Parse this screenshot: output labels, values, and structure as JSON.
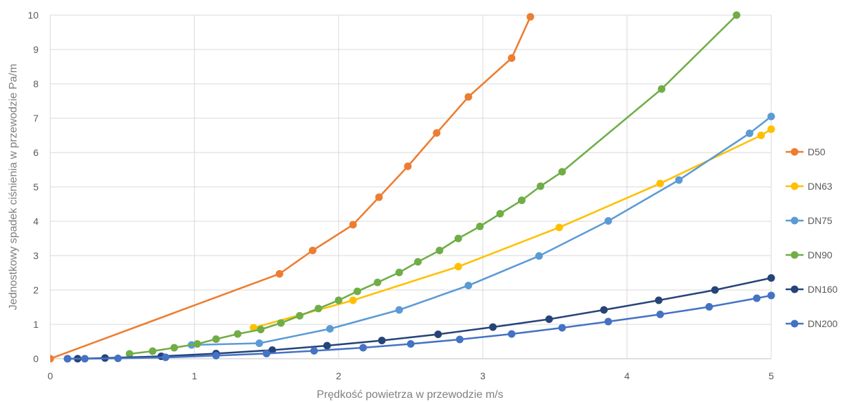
{
  "chart_data": {
    "type": "line",
    "title": "",
    "xlabel": "Prędkość powietrza w przewodzie m/s",
    "ylabel": "Jednostkowy spadek ciśnienia w przewodzie Pa/m",
    "xlim": [
      0,
      5
    ],
    "ylim": [
      0,
      10
    ],
    "xticks": [
      "0",
      "1",
      "2",
      "3",
      "4",
      "5"
    ],
    "yticks": [
      "0",
      "1",
      "2",
      "3",
      "4",
      "5",
      "6",
      "7",
      "8",
      "9",
      "10"
    ],
    "grid": true,
    "legend_position": "right",
    "series": [
      {
        "name": "D50",
        "color": "#ED7D31",
        "points": [
          [
            0,
            0
          ],
          [
            1.59,
            2.47
          ],
          [
            1.82,
            3.15
          ],
          [
            2.1,
            3.9
          ],
          [
            2.28,
            4.7
          ],
          [
            2.48,
            5.6
          ],
          [
            2.68,
            6.57
          ],
          [
            2.9,
            7.62
          ],
          [
            3.2,
            8.75
          ],
          [
            3.33,
            9.95
          ]
        ]
      },
      {
        "name": "DN63",
        "color": "#FFC000",
        "points": [
          [
            1.41,
            0.9
          ],
          [
            2.1,
            1.7
          ],
          [
            2.83,
            2.68
          ],
          [
            3.53,
            3.82
          ],
          [
            4.23,
            5.1
          ],
          [
            4.93,
            6.5
          ],
          [
            5.0,
            6.68
          ]
        ]
      },
      {
        "name": "DN75",
        "color": "#5B9BD5",
        "points": [
          [
            0.98,
            0.4
          ],
          [
            1.45,
            0.45
          ],
          [
            1.94,
            0.87
          ],
          [
            2.42,
            1.42
          ],
          [
            2.9,
            2.13
          ],
          [
            3.39,
            2.99
          ],
          [
            3.87,
            4.01
          ],
          [
            4.36,
            5.2
          ],
          [
            4.85,
            6.56
          ],
          [
            5.0,
            7.05
          ]
        ]
      },
      {
        "name": "DN90",
        "color": "#70AD47",
        "points": [
          [
            0.55,
            0.14
          ],
          [
            0.71,
            0.22
          ],
          [
            0.86,
            0.32
          ],
          [
            1.02,
            0.43
          ],
          [
            1.15,
            0.57
          ],
          [
            1.3,
            0.72
          ],
          [
            1.46,
            0.85
          ],
          [
            1.6,
            1.04
          ],
          [
            1.73,
            1.25
          ],
          [
            1.86,
            1.46
          ],
          [
            2.0,
            1.7
          ],
          [
            2.13,
            1.96
          ],
          [
            2.27,
            2.22
          ],
          [
            2.42,
            2.51
          ],
          [
            2.55,
            2.82
          ],
          [
            2.7,
            3.15
          ],
          [
            2.83,
            3.5
          ],
          [
            2.98,
            3.85
          ],
          [
            3.12,
            4.22
          ],
          [
            3.27,
            4.61
          ],
          [
            3.4,
            5.02
          ],
          [
            3.55,
            5.44
          ],
          [
            4.24,
            7.85
          ],
          [
            4.76,
            10.0
          ]
        ]
      },
      {
        "name": "DN160",
        "color": "#264478",
        "points": [
          [
            0.12,
            0.0
          ],
          [
            0.19,
            0.0
          ],
          [
            0.38,
            0.02
          ],
          [
            0.77,
            0.07
          ],
          [
            1.15,
            0.15
          ],
          [
            1.54,
            0.25
          ],
          [
            1.92,
            0.38
          ],
          [
            2.3,
            0.53
          ],
          [
            2.69,
            0.71
          ],
          [
            3.07,
            0.92
          ],
          [
            3.46,
            1.15
          ],
          [
            3.84,
            1.42
          ],
          [
            4.22,
            1.7
          ],
          [
            4.61,
            2.0
          ],
          [
            5.0,
            2.35
          ]
        ]
      },
      {
        "name": "DN200",
        "color": "#4472C4",
        "points": [
          [
            0.12,
            0.0
          ],
          [
            0.24,
            0.0
          ],
          [
            0.47,
            0.01
          ],
          [
            0.8,
            0.04
          ],
          [
            1.15,
            0.09
          ],
          [
            1.5,
            0.15
          ],
          [
            1.83,
            0.23
          ],
          [
            2.17,
            0.32
          ],
          [
            2.5,
            0.43
          ],
          [
            2.84,
            0.56
          ],
          [
            3.2,
            0.72
          ],
          [
            3.55,
            0.9
          ],
          [
            3.87,
            1.08
          ],
          [
            4.23,
            1.29
          ],
          [
            4.57,
            1.51
          ],
          [
            4.9,
            1.76
          ],
          [
            5.0,
            1.84
          ]
        ]
      }
    ]
  }
}
